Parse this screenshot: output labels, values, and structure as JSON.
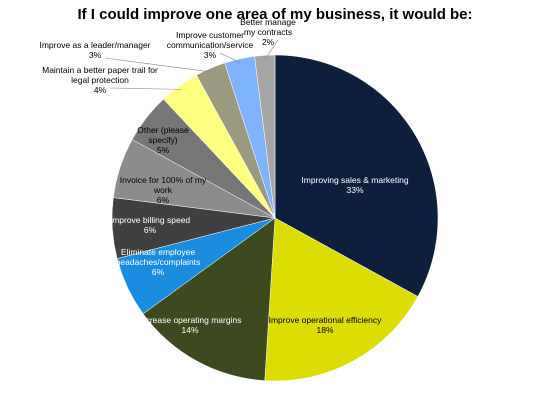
{
  "chart_data": {
    "type": "pie",
    "title": "If I could improve one area of my business, it would be:",
    "categories": [
      "Improving sales & marketing",
      "Improve operational efficiency",
      "Increase operating margins",
      "Eliminate employee headaches/complaints",
      "Improve billing speed",
      "Invoice for 100% of my work",
      "Other (please specify)",
      "Maintain a better paper trail for legal protection",
      "Improve as a leader/manager",
      "Improve customer communication/service",
      "Better manage my contracts"
    ],
    "values": [
      33,
      18,
      14,
      6,
      6,
      6,
      5,
      4,
      3,
      3,
      2
    ],
    "value_labels": [
      "33%",
      "18%",
      "14%",
      "6%",
      "6%",
      "6%",
      "5%",
      "4%",
      "3%",
      "3%",
      "2%"
    ],
    "colors": [
      "#0d1f3c",
      "#dcdc00",
      "#3d4a1f",
      "#1a8ce0",
      "#404040",
      "#8c8c8c",
      "#767676",
      "#ffff80",
      "#9a9a80",
      "#80b3ff",
      "#a6a6a6"
    ]
  }
}
